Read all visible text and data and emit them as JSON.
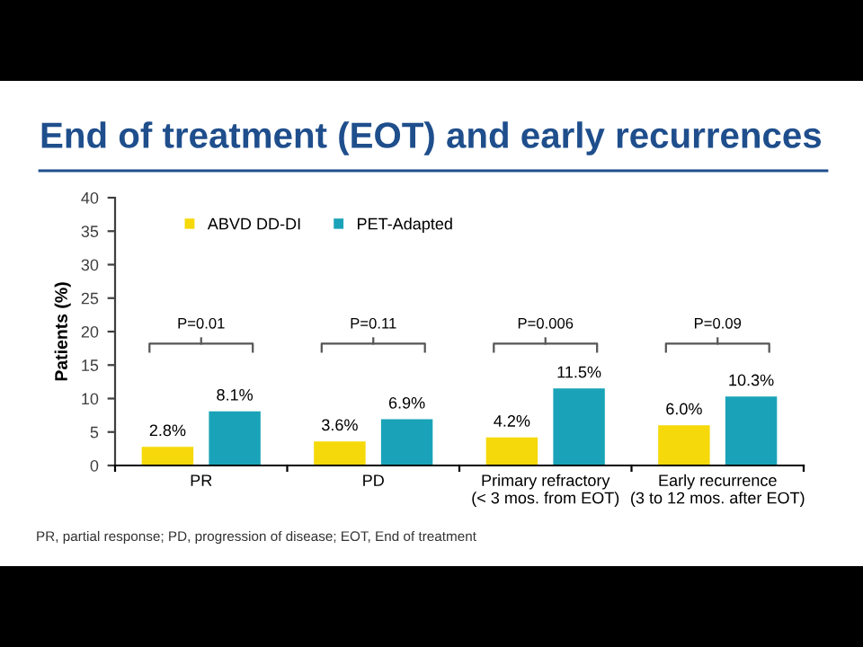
{
  "chart_data": {
    "type": "bar",
    "title": "End of treatment (EOT) and early recurrences",
    "ylabel": "Patients (%)",
    "categories": [
      "PR",
      "PD",
      "Primary refractory\n(< 3 mos. from EOT)",
      "Early recurrence\n(3 to 12 mos. after EOT)"
    ],
    "series": [
      {
        "name": "ABVD DD-DI",
        "color": "#f5d90a",
        "values": [
          2.8,
          3.6,
          4.2,
          6.0
        ],
        "value_labels": [
          "2.8%",
          "3.6%",
          "4.2%",
          "6.0%"
        ]
      },
      {
        "name": "PET-Adapted",
        "color": "#1aa3b8",
        "values": [
          8.1,
          6.9,
          11.5,
          10.3
        ],
        "value_labels": [
          "8.1%",
          "6.9%",
          "11.5%",
          "10.3%"
        ]
      }
    ],
    "ylim": [
      0,
      40
    ],
    "yticks": [
      0,
      5,
      10,
      15,
      20,
      25,
      30,
      35,
      40
    ],
    "grid": false,
    "legend": "top left",
    "annotations": [
      "P=0.01",
      "P=0.11",
      "P=0.006",
      "P=0.09",
      "PR, partial response; PD, progression of disease; EOT, End of treatment"
    ]
  }
}
